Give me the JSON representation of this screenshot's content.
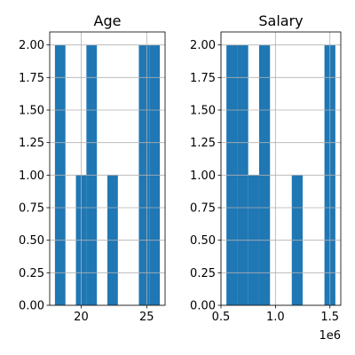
{
  "chart_data": [
    {
      "type": "bar",
      "title": "Age",
      "xlabel": "",
      "ylabel": "",
      "xlim": [
        17.6,
        26.4
      ],
      "ylim": [
        0,
        2.1
      ],
      "xticks": [
        20,
        25
      ],
      "xtick_labels": [
        "20",
        "25"
      ],
      "yticks": [
        0,
        0.25,
        0.5,
        0.75,
        1.0,
        1.25,
        1.5,
        1.75,
        2.0
      ],
      "ytick_labels": [
        "0.00",
        "0.25",
        "0.50",
        "0.75",
        "1.00",
        "1.25",
        "1.50",
        "1.75",
        "2.00"
      ],
      "grid": true,
      "bin_edges": [
        18,
        18.8,
        19.6,
        20.4,
        21.2,
        22.0,
        22.8,
        23.6,
        24.4,
        25.2,
        26.0
      ],
      "values": [
        2,
        0,
        1,
        2,
        0,
        1,
        0,
        0,
        2,
        2
      ],
      "color": "#1f77b4"
    },
    {
      "type": "bar",
      "title": "Salary",
      "xlabel": "",
      "ylabel": "",
      "offset_label": "1e6",
      "xlim": [
        0.5,
        1.6
      ],
      "ylim": [
        0,
        2.1
      ],
      "xticks": [
        0.5,
        1.0,
        1.5
      ],
      "xtick_labels": [
        "0.5",
        "1.0",
        "1.5"
      ],
      "yticks": [
        0,
        0.25,
        0.5,
        0.75,
        1.0,
        1.25,
        1.5,
        1.75,
        2.0
      ],
      "ytick_labels": [
        "0.00",
        "0.25",
        "0.50",
        "0.75",
        "1.00",
        "1.25",
        "1.50",
        "1.75",
        "2.00"
      ],
      "grid": true,
      "bin_edges": [
        0.55,
        0.65,
        0.75,
        0.85,
        0.95,
        1.05,
        1.15,
        1.25,
        1.35,
        1.45,
        1.55
      ],
      "values": [
        2,
        2,
        1,
        2,
        0,
        0,
        1,
        0,
        0,
        2
      ],
      "color": "#1f77b4"
    }
  ]
}
